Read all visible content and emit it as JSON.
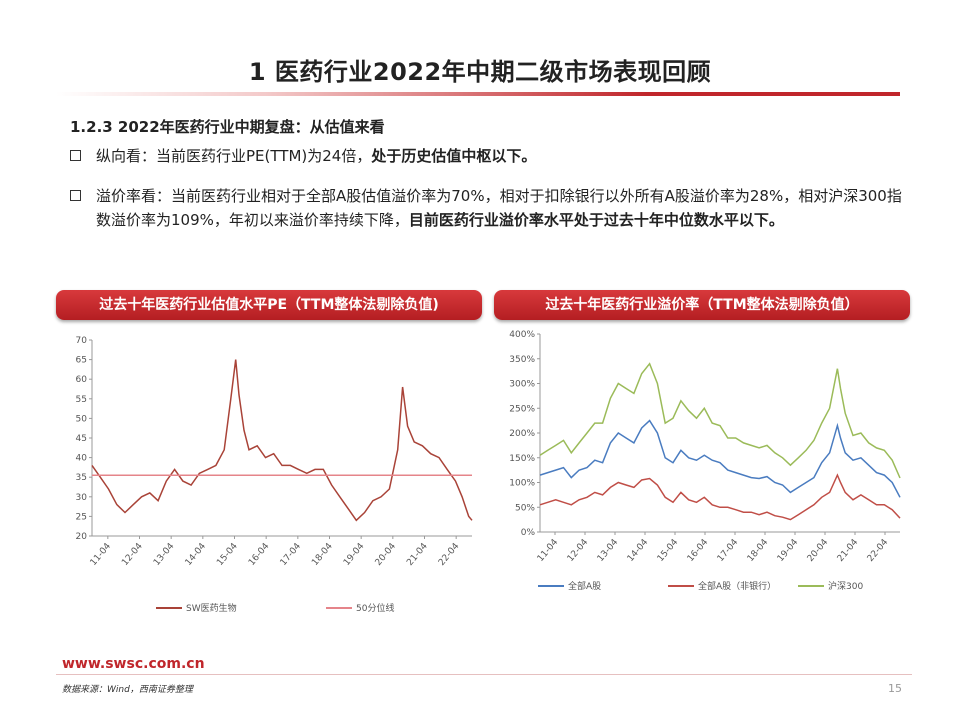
{
  "slide": {
    "title": "1 医药行业2022年中期二级市场表现回顾",
    "subhead": "1.2.3  2022年医药行业中期复盘：从估值来看",
    "bullet1_normal": "纵向看：当前医药行业PE(TTM)为24倍，",
    "bullet1_bold": "处于历史估值中枢以下。",
    "bullet2_normal": "溢价率看：当前医药行业相对于全部A股估值溢价率为70%，相对于扣除银行以外所有A股溢价率为28%，相对沪深300指数溢价率为109%，年初以来溢价率持续下降，",
    "bullet2_bold": "目前医药行业溢价率水平处于过去十年中位数水平以下。",
    "footer_url": "www.swsc.com.cn",
    "source": "数据来源：Wind，西南证券整理",
    "page_number": "15",
    "accent_color": "#c0262b"
  },
  "chart_data": [
    {
      "type": "line",
      "title": "过去十年医药行业估值水平PE（TTM整体法剔除负值)",
      "ylim": [
        20,
        70
      ],
      "y_ticks": [
        "20",
        "25",
        "30",
        "35",
        "40",
        "45",
        "50",
        "55",
        "60",
        "65",
        "70"
      ],
      "x_ticks": [
        "11-04",
        "12-04",
        "13-04",
        "14-04",
        "15-04",
        "16-04",
        "17-04",
        "18-04",
        "19-04",
        "20-04",
        "21-04",
        "22-04"
      ],
      "x": [
        2011.0,
        2011.25,
        2011.5,
        2011.75,
        2012.0,
        2012.25,
        2012.5,
        2012.75,
        2013.0,
        2013.25,
        2013.5,
        2013.75,
        2014.0,
        2014.25,
        2014.5,
        2014.75,
        2015.0,
        2015.2,
        2015.35,
        2015.45,
        2015.6,
        2015.75,
        2016.0,
        2016.25,
        2016.5,
        2016.75,
        2017.0,
        2017.25,
        2017.5,
        2017.75,
        2018.0,
        2018.25,
        2018.5,
        2018.75,
        2019.0,
        2019.25,
        2019.5,
        2019.75,
        2020.0,
        2020.25,
        2020.4,
        2020.55,
        2020.75,
        2021.0,
        2021.25,
        2021.5,
        2021.75,
        2022.0,
        2022.2,
        2022.4,
        2022.5
      ],
      "series": [
        {
          "name": "SW医药生物",
          "color": "#a94338",
          "values": [
            38,
            35,
            32,
            28,
            26,
            28,
            30,
            31,
            29,
            34,
            37,
            34,
            33,
            36,
            37,
            38,
            42,
            55,
            65,
            56,
            47,
            42,
            43,
            40,
            41,
            38,
            38,
            37,
            36,
            37,
            37,
            33,
            30,
            27,
            24,
            26,
            29,
            30,
            32,
            42,
            58,
            48,
            44,
            43,
            41,
            40,
            37,
            34,
            30,
            25,
            24
          ]
        },
        {
          "name": "50分位线",
          "color": "#e5848a",
          "values": [
            35.5,
            35.5,
            35.5,
            35.5,
            35.5,
            35.5,
            35.5,
            35.5,
            35.5,
            35.5,
            35.5,
            35.5,
            35.5,
            35.5,
            35.5,
            35.5,
            35.5,
            35.5,
            35.5,
            35.5,
            35.5,
            35.5,
            35.5,
            35.5,
            35.5,
            35.5,
            35.5,
            35.5,
            35.5,
            35.5,
            35.5,
            35.5,
            35.5,
            35.5,
            35.5,
            35.5,
            35.5,
            35.5,
            35.5,
            35.5,
            35.5,
            35.5,
            35.5,
            35.5,
            35.5,
            35.5,
            35.5,
            35.5,
            35.5,
            35.5,
            35.5
          ]
        }
      ],
      "legend": "bottom"
    },
    {
      "type": "line",
      "title": "过去十年医药行业溢价率（TTM整体法剔除负值）",
      "ylim": [
        0,
        400
      ],
      "y_ticks": [
        "0%",
        "50%",
        "100%",
        "150%",
        "200%",
        "250%",
        "300%",
        "350%",
        "400%"
      ],
      "x_ticks": [
        "11-04",
        "12-04",
        "13-04",
        "14-04",
        "15-04",
        "16-04",
        "17-04",
        "18-04",
        "19-04",
        "20-04",
        "21-04",
        "22-04"
      ],
      "x": [
        2011.0,
        2011.25,
        2011.5,
        2011.75,
        2012.0,
        2012.25,
        2012.5,
        2012.75,
        2013.0,
        2013.25,
        2013.5,
        2013.75,
        2014.0,
        2014.25,
        2014.5,
        2014.75,
        2015.0,
        2015.25,
        2015.5,
        2015.75,
        2016.0,
        2016.25,
        2016.5,
        2016.75,
        2017.0,
        2017.25,
        2017.5,
        2017.75,
        2018.0,
        2018.25,
        2018.5,
        2018.75,
        2019.0,
        2019.25,
        2019.5,
        2019.75,
        2020.0,
        2020.25,
        2020.5,
        2020.6,
        2020.75,
        2021.0,
        2021.25,
        2021.5,
        2021.75,
        2022.0,
        2022.25,
        2022.5
      ],
      "series": [
        {
          "name": "全部A股",
          "color": "#4a7cc0",
          "values": [
            115,
            120,
            125,
            130,
            110,
            125,
            130,
            145,
            140,
            180,
            200,
            190,
            180,
            210,
            225,
            200,
            150,
            140,
            165,
            150,
            145,
            155,
            145,
            140,
            125,
            120,
            115,
            110,
            108,
            112,
            100,
            95,
            80,
            90,
            100,
            110,
            140,
            160,
            215,
            190,
            160,
            145,
            150,
            135,
            120,
            115,
            100,
            70
          ]
        },
        {
          "name": "全部A股（非银行）",
          "color": "#c04e47",
          "values": [
            55,
            60,
            65,
            60,
            55,
            65,
            70,
            80,
            75,
            90,
            100,
            95,
            90,
            105,
            108,
            95,
            70,
            60,
            80,
            65,
            60,
            70,
            55,
            50,
            50,
            45,
            40,
            40,
            35,
            40,
            33,
            30,
            25,
            35,
            45,
            55,
            70,
            80,
            115,
            100,
            80,
            65,
            75,
            65,
            55,
            55,
            45,
            28
          ]
        },
        {
          "name": "沪深300",
          "color": "#9bbb59",
          "values": [
            155,
            165,
            175,
            185,
            160,
            180,
            200,
            220,
            220,
            270,
            300,
            290,
            280,
            320,
            340,
            300,
            220,
            230,
            265,
            245,
            230,
            250,
            220,
            215,
            190,
            190,
            180,
            175,
            170,
            175,
            160,
            150,
            135,
            150,
            165,
            185,
            220,
            250,
            330,
            290,
            240,
            195,
            200,
            180,
            170,
            165,
            145,
            109
          ]
        }
      ],
      "legend": "bottom"
    }
  ]
}
